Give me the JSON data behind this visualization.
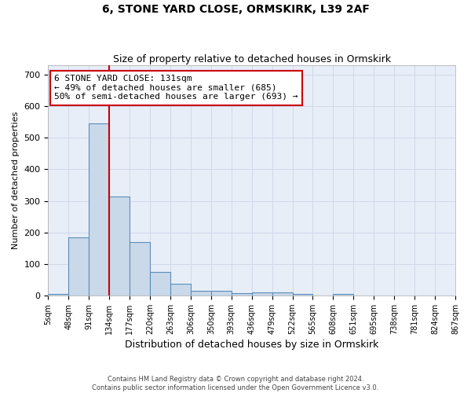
{
  "title": "6, STONE YARD CLOSE, ORMSKIRK, L39 2AF",
  "subtitle": "Size of property relative to detached houses in Ormskirk",
  "xlabel": "Distribution of detached houses by size in Ormskirk",
  "ylabel": "Number of detached properties",
  "footer_line1": "Contains HM Land Registry data © Crown copyright and database right 2024.",
  "footer_line2": "Contains public sector information licensed under the Open Government Licence v3.0.",
  "bin_labels": [
    "5sqm",
    "48sqm",
    "91sqm",
    "134sqm",
    "177sqm",
    "220sqm",
    "263sqm",
    "306sqm",
    "350sqm",
    "393sqm",
    "436sqm",
    "479sqm",
    "522sqm",
    "565sqm",
    "608sqm",
    "651sqm",
    "695sqm",
    "738sqm",
    "781sqm",
    "824sqm",
    "867sqm"
  ],
  "bar_values": [
    5,
    185,
    545,
    315,
    168,
    75,
    37,
    15,
    15,
    8,
    10,
    10,
    5,
    0,
    5,
    0,
    0,
    0,
    0,
    0
  ],
  "bar_color": "#c9d9ea",
  "bar_edge_color": "#5b8db8",
  "vline_x": 3.0,
  "vline_color": "#cc0000",
  "ylim": [
    0,
    730
  ],
  "yticks": [
    0,
    100,
    200,
    300,
    400,
    500,
    600,
    700
  ],
  "annotation_text": "6 STONE YARD CLOSE: 131sqm\n← 49% of detached houses are smaller (685)\n50% of semi-detached houses are larger (693) →",
  "annotation_box_color": "#ffffff",
  "annotation_box_edge": "#cc0000",
  "grid_color": "#d0d8e8",
  "background_color": "#e8eef8",
  "title_fontsize": 10,
  "subtitle_fontsize": 9,
  "annotation_fontsize": 8,
  "ylabel_fontsize": 8,
  "xlabel_fontsize": 9
}
